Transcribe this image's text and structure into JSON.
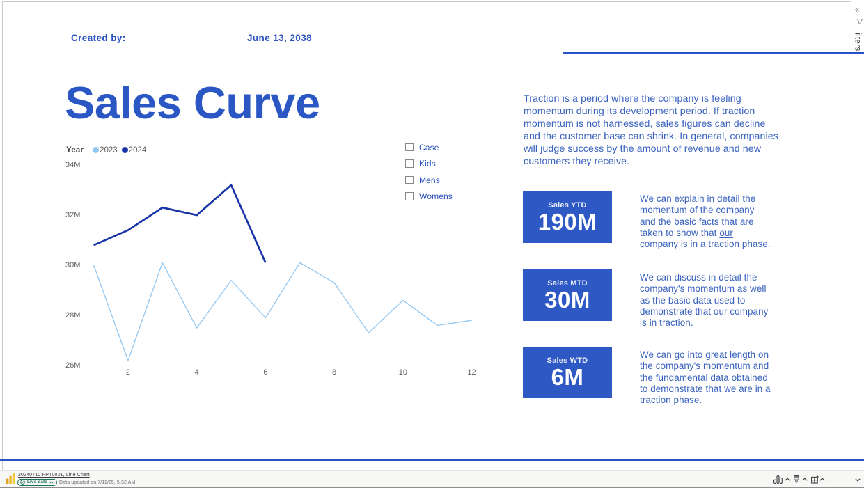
{
  "header": {
    "created_by_label": "Created by:",
    "date": "June 13, 2038"
  },
  "page_title": "Sales Curve",
  "chart_data": {
    "type": "line",
    "title": "",
    "legend_title": "Year",
    "xlabel": "",
    "ylabel": "",
    "x": [
      1,
      2,
      3,
      4,
      5,
      6,
      7,
      8,
      9,
      10,
      11,
      12
    ],
    "x_ticks": [
      2,
      4,
      6,
      8,
      10,
      12
    ],
    "y_ticks": [
      34,
      32,
      30,
      28,
      26
    ],
    "y_tick_suffix": "M",
    "ylim": [
      26,
      34
    ],
    "xlim": [
      1,
      12
    ],
    "gridlines": false,
    "legend_position": "top-left",
    "series": [
      {
        "name": "2023",
        "color": "#8fc6f2",
        "stroke_width": 1.3,
        "values": [
          30.0,
          26.2,
          30.1,
          27.5,
          29.4,
          27.9,
          30.1,
          29.3,
          27.3,
          28.6,
          27.6,
          27.8
        ]
      },
      {
        "name": "2024",
        "color": "#1733a6",
        "stroke_width": 2.7,
        "values": [
          30.8,
          31.4,
          32.3,
          32.0,
          33.2,
          30.1
        ]
      }
    ]
  },
  "slicer": {
    "items": [
      {
        "label": "Case",
        "checked": false
      },
      {
        "label": "Kids",
        "checked": false
      },
      {
        "label": "Mens",
        "checked": false
      },
      {
        "label": "Womens",
        "checked": false
      }
    ]
  },
  "paragraph": {
    "lines": [
      "Traction is a period where the company is feeling",
      "momentum during its development period. If traction",
      "momentum is not harnessed, sales figures can decline",
      "and the customer base can shrink. In general, companies",
      "will judge success by the amount of revenue and new",
      "customers they receive."
    ]
  },
  "kpis": [
    {
      "label": "Sales YTD",
      "value": "190M",
      "note_lines": [
        "We can explain in detail the",
        "momentum of the company",
        "and the basic facts that are",
        "taken to show that our",
        "company is in a traction phase."
      ],
      "underline_line": 3,
      "underline_word": "our"
    },
    {
      "label": "Sales MTD",
      "value": "30M",
      "note_lines": [
        "We can discuss in detail the",
        "company's momentum as well",
        "as the basic data used to",
        "demonstrate that our company",
        "is in traction."
      ]
    },
    {
      "label": "Sales WTD",
      "value": "6M",
      "note_lines": [
        "We can go into great length on",
        "the company's momentum and",
        "the fundamental data obtained",
        "to demonstrate that we are in a",
        "traction phase."
      ]
    }
  ],
  "filters_pane": {
    "label": "Filters",
    "collapse_glyph": "«"
  },
  "footer": {
    "report_link": "20240710 PPT0001, Line Chart",
    "live_badge_label": "Live data",
    "updated_text": "Data updated on 7/11/25, 5:32 AM"
  },
  "colors": {
    "accent_blue": "#2b57c5",
    "card_blue": "#2e59c5",
    "text_blue": "#3a63be",
    "series_2023": "#8fc6f2",
    "series_2024": "#1733a6",
    "live_green": "#17745d",
    "axis_gray": "#605e5c"
  }
}
